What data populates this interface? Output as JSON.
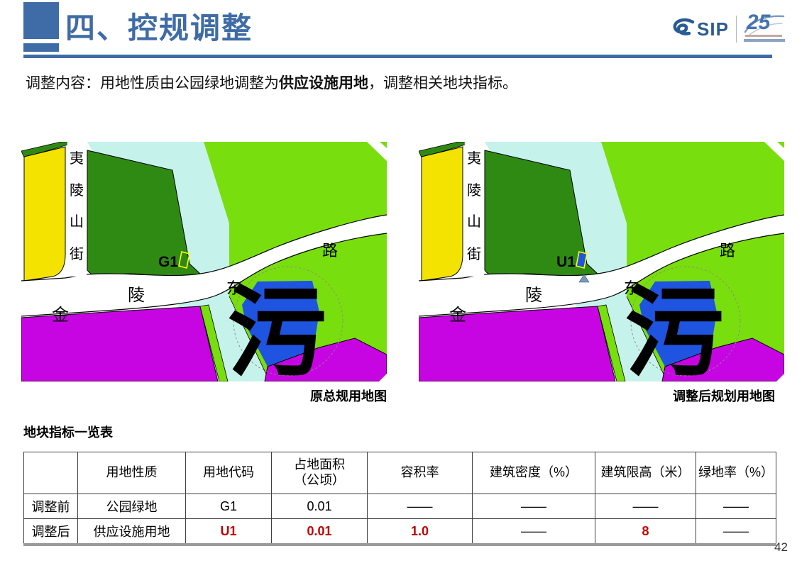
{
  "header": {
    "title": "四、控规调整",
    "accent_color": "#3f6ca6"
  },
  "logo": {
    "sip_text": "SIP",
    "anniversary_text": "25"
  },
  "intro": {
    "prefix": "调整内容：用地性质由公园绿地调整为",
    "emphasis": "供应设施用地",
    "suffix": "，调整相关地块指标。"
  },
  "maps": {
    "left_caption": "原总规用地图",
    "right_caption": "调整后规划用地图",
    "street_vertical_chars": [
      "夷",
      "陵",
      "山",
      "街"
    ],
    "road_chars": [
      "金",
      "陵",
      "东",
      "路"
    ],
    "plant_label": "污",
    "left_parcel_code": "G1",
    "right_parcel_code": "U1",
    "colors": {
      "yellow": "#f4e300",
      "dark_green": "#2f8a14",
      "bright_green": "#79de0d",
      "canal": "#c6f2ec",
      "blue": "#1f54e0",
      "magenta": "#c704e2",
      "parcel_outline": "#ffff00",
      "triangle": "#7e98bb"
    }
  },
  "table": {
    "title": "地块指标一览表",
    "headers": [
      "",
      "用地性质",
      "用地代码",
      "占地面积\n（公顷）",
      "容积率",
      "建筑密度（%）",
      "建筑限高（米）",
      "绿地率（%）"
    ],
    "rows": [
      {
        "label": "调整前",
        "values": [
          "公园绿地",
          "G1",
          "0.01",
          "——",
          "——",
          "——",
          "——"
        ],
        "red_flags": [
          false,
          false,
          false,
          false,
          false,
          false,
          false
        ]
      },
      {
        "label": "调整后",
        "values": [
          "供应设施用地",
          "U1",
          "0.01",
          "1.0",
          "——",
          "8",
          "——"
        ],
        "red_flags": [
          false,
          true,
          true,
          true,
          false,
          true,
          false
        ]
      }
    ],
    "red_color": "#c00000"
  },
  "page_number": "42"
}
